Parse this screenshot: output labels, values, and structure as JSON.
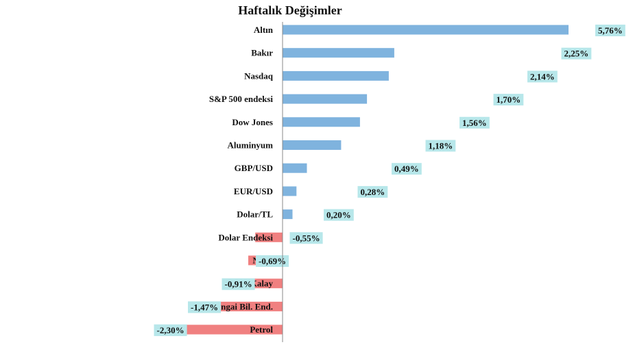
{
  "chart_data": {
    "type": "bar",
    "orientation": "horizontal",
    "title": "Haftalık Değişimler",
    "xlabel": "",
    "ylabel": "",
    "grid": false,
    "legend": "none",
    "categories": [
      "Altın",
      "Bakır",
      "Nasdaq",
      "S&P 500 endeksi",
      "Dow Jones",
      "Aluminyum",
      "GBP/USD",
      "EUR/USD",
      "Dolar/TL",
      "Dolar Endeksi",
      "Nikel",
      "Kalay",
      "Shangai Bil. End.",
      "Petrol"
    ],
    "values": [
      5.76,
      2.25,
      2.14,
      1.7,
      1.56,
      1.18,
      0.49,
      0.28,
      0.2,
      -0.55,
      -0.69,
      -0.91,
      -1.47,
      -2.3
    ],
    "labels": [
      "5,76%",
      "2,25%",
      "2,14%",
      "1,70%",
      "1,56%",
      "1,18%",
      "0,49%",
      "0,28%",
      "0,20%",
      "-0,55%",
      "-0,69%",
      "-0,91%",
      "-1,47%",
      "-2,30%"
    ],
    "colors": {
      "positive": "#7fb3de",
      "negative": "#f08080",
      "label_bg": "#b7e7ea",
      "axis": "#888888"
    }
  }
}
